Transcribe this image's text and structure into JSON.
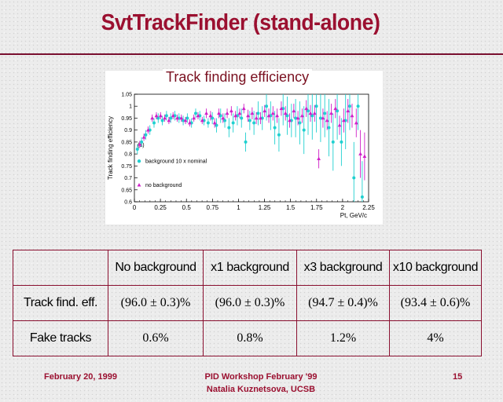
{
  "slide": {
    "title": "SvtTrackFinder (stand-alone)",
    "plot_label": "Track finding efficiency"
  },
  "chart_data": {
    "type": "scatter",
    "title": "Track finding efficiency",
    "xlabel": "Pt, GeV/c",
    "ylabel": "Track finding efficiency",
    "xlim": [
      0,
      2.25
    ],
    "ylim": [
      0.6,
      1.05
    ],
    "x_ticks": [
      "0",
      "0.25",
      "0.5",
      "0.75",
      "1",
      "1.25",
      "1.5",
      "1.75",
      "2",
      "2.25"
    ],
    "y_ticks": [
      "0.6",
      "0.65",
      "0.7",
      "0.75",
      "0.8",
      "0.85",
      "0.9",
      "0.95",
      "1",
      "1.05"
    ],
    "panel_label": "(a)",
    "series": [
      {
        "name": "background 10 x nominal",
        "color": "#20d0d0",
        "marker": "circle",
        "x": [
          0.04,
          0.08,
          0.12,
          0.16,
          0.2,
          0.24,
          0.28,
          0.32,
          0.36,
          0.4,
          0.44,
          0.48,
          0.52,
          0.56,
          0.6,
          0.64,
          0.68,
          0.72,
          0.76,
          0.8,
          0.84,
          0.88,
          0.92,
          0.96,
          1.0,
          1.04,
          1.08,
          1.12,
          1.16,
          1.2,
          1.24,
          1.28,
          1.32,
          1.36,
          1.4,
          1.44,
          1.48,
          1.52,
          1.56,
          1.6,
          1.64,
          1.68,
          1.72,
          1.76,
          1.8,
          1.84,
          1.88,
          1.92,
          1.96,
          2.0,
          2.04,
          2.08,
          2.12,
          2.16,
          2.2
        ],
        "y": [
          0.82,
          0.85,
          0.88,
          0.9,
          0.93,
          0.95,
          0.94,
          0.96,
          0.95,
          0.96,
          0.95,
          0.94,
          0.95,
          0.93,
          0.97,
          0.96,
          0.94,
          0.93,
          0.95,
          0.92,
          0.96,
          0.94,
          0.91,
          0.93,
          0.96,
          0.95,
          0.85,
          0.94,
          0.93,
          0.97,
          0.95,
          1.0,
          0.96,
          0.91,
          0.88,
          0.99,
          0.96,
          0.94,
          0.95,
          0.93,
          0.9,
          0.98,
          0.96,
          1.0,
          0.95,
          0.97,
          0.91,
          0.85,
          0.98,
          0.85,
          0.94,
          1.0,
          0.7,
          1.0,
          0.62
        ],
        "err": [
          0.02,
          0.02,
          0.02,
          0.02,
          0.02,
          0.02,
          0.02,
          0.02,
          0.02,
          0.02,
          0.02,
          0.02,
          0.02,
          0.02,
          0.02,
          0.02,
          0.02,
          0.02,
          0.025,
          0.03,
          0.03,
          0.03,
          0.04,
          0.04,
          0.04,
          0.04,
          0.04,
          0.04,
          0.05,
          0.05,
          0.05,
          0.06,
          0.06,
          0.07,
          0.07,
          0.07,
          0.08,
          0.07,
          0.08,
          0.09,
          0.1,
          0.1,
          0.1,
          0.11,
          0.1,
          0.1,
          0.12,
          0.12,
          0.12,
          0.1,
          0.12,
          0.1,
          0.15,
          0.1,
          0.15
        ]
      },
      {
        "name": "no background",
        "color": "#d020c8",
        "marker": "triangle",
        "x": [
          0.04,
          0.08,
          0.12,
          0.16,
          0.2,
          0.24,
          0.28,
          0.32,
          0.36,
          0.4,
          0.44,
          0.48,
          0.52,
          0.56,
          0.6,
          0.64,
          0.68,
          0.72,
          0.76,
          0.8,
          0.84,
          0.88,
          0.92,
          0.96,
          1.0,
          1.04,
          1.08,
          1.12,
          1.16,
          1.2,
          1.24,
          1.28,
          1.32,
          1.36,
          1.4,
          1.44,
          1.48,
          1.52,
          1.56,
          1.6,
          1.64,
          1.68,
          1.72,
          1.76,
          1.8,
          1.84,
          1.88,
          1.92,
          1.96,
          2.0,
          2.04,
          2.08,
          2.12,
          2.16,
          2.2
        ],
        "y": [
          0.84,
          0.87,
          0.9,
          0.95,
          0.96,
          0.96,
          0.95,
          0.94,
          0.96,
          0.95,
          0.95,
          0.94,
          0.93,
          0.95,
          0.96,
          0.94,
          0.97,
          0.96,
          0.93,
          0.97,
          0.95,
          0.97,
          0.98,
          0.96,
          0.97,
          0.99,
          0.96,
          0.97,
          0.95,
          0.95,
          0.98,
          0.96,
          0.97,
          0.96,
          0.99,
          0.97,
          0.94,
          0.98,
          0.95,
          0.96,
          0.99,
          0.97,
          0.97,
          0.78,
          0.95,
          0.94,
          0.97,
          0.99,
          0.92,
          0.94,
          0.98,
          0.96,
          0.93,
          0.8,
          0.79
        ],
        "err": [
          0.015,
          0.015,
          0.015,
          0.015,
          0.015,
          0.015,
          0.015,
          0.015,
          0.015,
          0.015,
          0.015,
          0.015,
          0.015,
          0.015,
          0.015,
          0.015,
          0.02,
          0.02,
          0.02,
          0.02,
          0.02,
          0.02,
          0.02,
          0.02,
          0.02,
          0.02,
          0.025,
          0.025,
          0.025,
          0.025,
          0.025,
          0.03,
          0.03,
          0.03,
          0.03,
          0.03,
          0.03,
          0.03,
          0.03,
          0.03,
          0.035,
          0.035,
          0.035,
          0.04,
          0.04,
          0.04,
          0.04,
          0.04,
          0.04,
          0.05,
          0.05,
          0.05,
          0.06,
          0.1,
          0.1
        ]
      }
    ]
  },
  "table": {
    "headers": [
      "",
      "No background",
      "x1 background",
      "x3 background",
      "x10 background"
    ],
    "rows": [
      {
        "label": "Track find. eff.",
        "values": [
          "(96.0 ± 0.3)%",
          "(96.0 ± 0.3)%",
          "(94.7 ± 0.4)%",
          "(93.4 ± 0.6)%"
        ]
      },
      {
        "label": "Fake tracks",
        "values": [
          "0.6%",
          "0.8%",
          "1.2%",
          "4%"
        ]
      }
    ]
  },
  "footer": {
    "date": "February 20, 1999",
    "event": "PID Workshop February '99",
    "author": "Natalia Kuznetsova, UCSB",
    "page": "15"
  }
}
